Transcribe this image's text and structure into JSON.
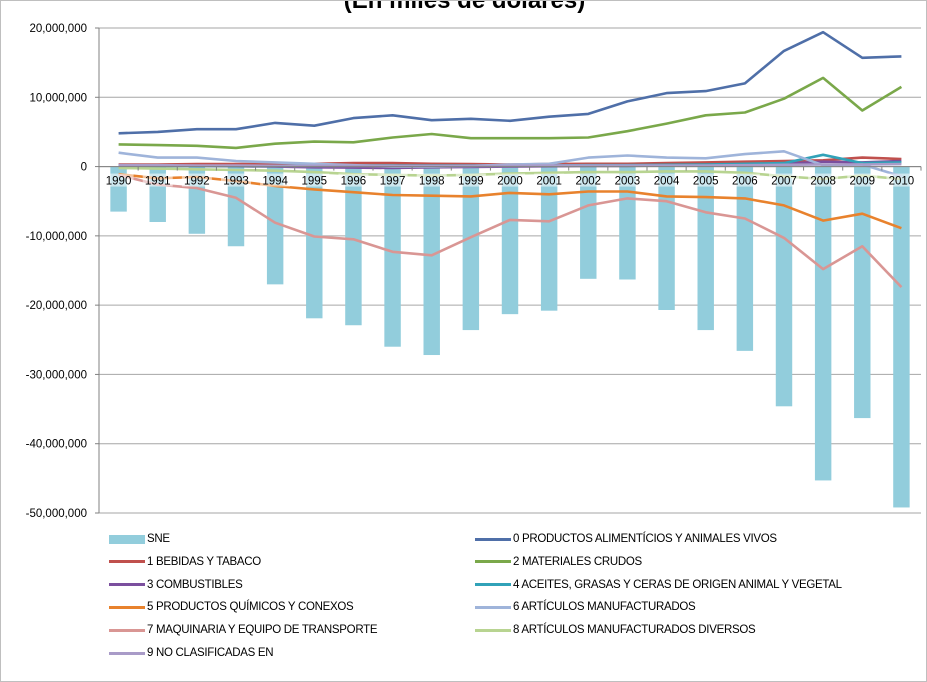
{
  "chart_data": {
    "type": "bar+line",
    "title": "(En miles de dólares)",
    "ylim": [
      -50000000,
      20000000
    ],
    "yticks": [
      "20,000,000",
      "10,000,000",
      "0",
      "-10,000,000",
      "-20,000,000",
      "-30,000,000",
      "-40,000,000",
      "-50,000,000"
    ],
    "ytick_values": [
      20000000,
      10000000,
      0,
      -10000000,
      -20000000,
      -30000000,
      -40000000,
      -50000000
    ],
    "categories": [
      "1990",
      "1991",
      "1992",
      "1993",
      "1994",
      "1995",
      "1996",
      "1997",
      "1998",
      "1999",
      "2000",
      "2001",
      "2002",
      "2003",
      "2004",
      "2005",
      "2006",
      "2007",
      "2008",
      "2009",
      "2010"
    ],
    "grid": "horizontal",
    "legend_position": "bottom",
    "bar_series": {
      "name": "SNE",
      "color": "#92cddc",
      "values": [
        -6500000,
        -8000000,
        -9700000,
        -11500000,
        -17000000,
        -21900000,
        -22900000,
        -26000000,
        -27200000,
        -23600000,
        -21300000,
        -20800000,
        -16200000,
        -16300000,
        -20700000,
        -23600000,
        -26600000,
        -34600000,
        -45300000,
        -36300000,
        -49200000
      ]
    },
    "line_series": [
      {
        "name": "0 PRODUCTOS ALIMENTÍCIOS Y ANIMALES VIVOS",
        "color": "#4f6fa8",
        "values": [
          4800000,
          5000000,
          5400000,
          5400000,
          6300000,
          5900000,
          7000000,
          7400000,
          6700000,
          6900000,
          6600000,
          7200000,
          7600000,
          9400000,
          10600000,
          10900000,
          12000000,
          16700000,
          19400000,
          15700000,
          15900000
        ]
      },
      {
        "name": "1 BEBIDAS Y TABACO",
        "color": "#c0504d",
        "values": [
          300000,
          300000,
          350000,
          350000,
          350000,
          400000,
          500000,
          500000,
          400000,
          350000,
          300000,
          350000,
          400000,
          400000,
          500000,
          600000,
          700000,
          800000,
          900000,
          1300000,
          1100000
        ]
      },
      {
        "name": "2 MATERIALES CRUDOS",
        "color": "#7aa84a",
        "values": [
          3200000,
          3100000,
          3000000,
          2700000,
          3300000,
          3600000,
          3500000,
          4200000,
          4700000,
          4100000,
          4100000,
          4100000,
          4200000,
          5100000,
          6200000,
          7400000,
          7800000,
          9800000,
          12800000,
          8100000,
          11500000
        ]
      },
      {
        "name": "3 COMBUSTIBLES",
        "color": "#7b4f9e",
        "values": [
          200000,
          150000,
          100000,
          50000,
          0,
          -100000,
          -150000,
          -200000,
          -100000,
          -50000,
          0,
          50000,
          100000,
          100000,
          150000,
          200000,
          300000,
          400000,
          700000,
          600000,
          800000
        ]
      },
      {
        "name": "4 ACEITES, GRASAS Y CERAS DE ORIGEN ANIMAL Y VEGETAL",
        "color": "#31a2b8",
        "values": [
          100000,
          100000,
          100000,
          100000,
          100000,
          150000,
          150000,
          150000,
          150000,
          150000,
          150000,
          150000,
          200000,
          200000,
          250000,
          300000,
          400000,
          500000,
          1700000,
          500000,
          600000
        ]
      },
      {
        "name": "5 PRODUCTOS QUÍMICOS Y CONEXOS",
        "color": "#e8822d",
        "values": [
          -1100000,
          -1700000,
          -1500000,
          -2100000,
          -2800000,
          -3300000,
          -3700000,
          -4100000,
          -4200000,
          -4300000,
          -3800000,
          -4000000,
          -3600000,
          -3600000,
          -4300000,
          -4400000,
          -4600000,
          -5600000,
          -7800000,
          -6800000,
          -8900000
        ]
      },
      {
        "name": "6 ARTÍCULOS MANUFACTURADOS",
        "color": "#9fb4da",
        "values": [
          2000000,
          1300000,
          1300000,
          800000,
          600000,
          400000,
          200000,
          0,
          0,
          100000,
          300000,
          400000,
          1300000,
          1600000,
          1300000,
          1200000,
          1800000,
          2200000,
          200000,
          300000,
          -1400000
        ]
      },
      {
        "name": "7 MAQUINARIA Y EQUIPO DE TRANSPORTE",
        "color": "#d99694",
        "values": [
          -1200000,
          -2600000,
          -3100000,
          -4500000,
          -8100000,
          -10100000,
          -10500000,
          -12300000,
          -12800000,
          -10200000,
          -7700000,
          -7900000,
          -5600000,
          -4600000,
          -5000000,
          -6600000,
          -7500000,
          -10300000,
          -14800000,
          -11500000,
          -17400000
        ]
      },
      {
        "name": "8 ARTÍCULOS MANUFACTURADOS DIVERSOS",
        "color": "#b8d491",
        "values": [
          -200000,
          -300000,
          -400000,
          -500000,
          -600000,
          -800000,
          -1100000,
          -1200000,
          -1300000,
          -1200000,
          -1000000,
          -900000,
          -800000,
          -800000,
          -700000,
          -700000,
          -900000,
          -1400000,
          -1800000,
          -1300000,
          -1800000
        ]
      },
      {
        "name": "9 NO CLASIFICADAS EN",
        "color": "#a99bc8",
        "values": [
          200000,
          200000,
          150000,
          150000,
          100000,
          100000,
          100000,
          100000,
          100000,
          100000,
          100000,
          150000,
          150000,
          150000,
          150000,
          150000,
          200000,
          250000,
          300000,
          300000,
          350000
        ]
      }
    ]
  }
}
